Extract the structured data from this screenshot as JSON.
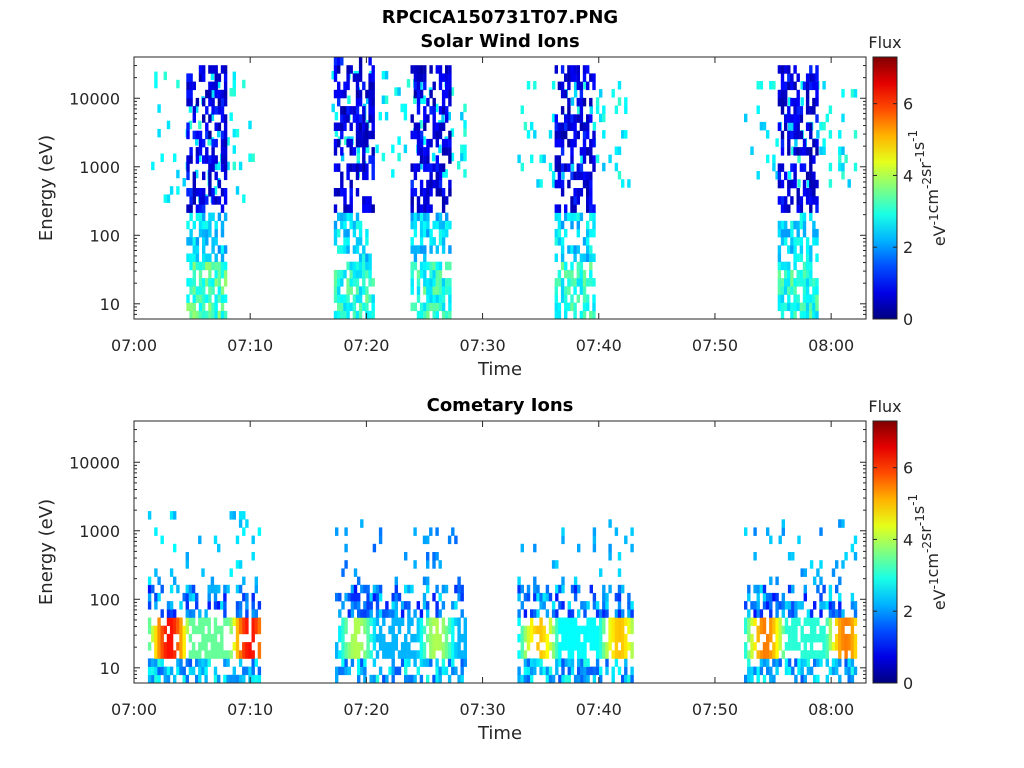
{
  "main_title": "RPCICA150731T07.PNG",
  "chart_data": [
    {
      "type": "heatmap",
      "title": "Solar Wind Ions",
      "xlabel": "Time",
      "ylabel": "Energy (eV)",
      "x_ticks": [
        "07:00",
        "07:10",
        "07:20",
        "07:30",
        "07:40",
        "07:50",
        "08:00"
      ],
      "x_tick_minutes": [
        0,
        10,
        20,
        30,
        40,
        50,
        60
      ],
      "xlim_minutes": [
        0,
        63
      ],
      "y_scale": "log",
      "ylim": [
        6,
        40000
      ],
      "y_ticks": [
        10,
        100,
        1000,
        10000
      ],
      "y_tick_labels": [
        "10",
        "100",
        "1000",
        "10000"
      ],
      "colorbar": {
        "label": "Flux",
        "units": "eV-1cm-2sr-1s-1",
        "range": [
          0,
          7.3
        ],
        "ticks": [
          0,
          2,
          4,
          6
        ],
        "colormap": "jet"
      },
      "bursts": [
        {
          "start_min": 4.5,
          "end_min": 7.8,
          "emin": 6,
          "emax": 30000,
          "flux_low_energy": 3.2,
          "flux_mid_energy": 1.2,
          "flux_high_energy": 0.3
        },
        {
          "start_min": 17.2,
          "end_min": 20.6,
          "emin": 6,
          "emax": 35000,
          "flux_low_energy": 3.0,
          "flux_mid_energy": 1.3,
          "flux_high_energy": 0.3
        },
        {
          "start_min": 23.8,
          "end_min": 27.2,
          "emin": 6,
          "emax": 30000,
          "flux_low_energy": 3.0,
          "flux_mid_energy": 1.2,
          "flux_high_energy": 0.3
        },
        {
          "start_min": 36.2,
          "end_min": 39.5,
          "emin": 6,
          "emax": 25000,
          "flux_low_energy": 3.0,
          "flux_mid_energy": 1.3,
          "flux_high_energy": 0.3
        },
        {
          "start_min": 55.4,
          "end_min": 58.9,
          "emin": 6,
          "emax": 30000,
          "flux_low_energy": 3.0,
          "flux_mid_energy": 1.3,
          "flux_high_energy": 0.3
        }
      ],
      "scatter_regions": [
        {
          "start_min": 1.2,
          "end_min": 10.6,
          "emin": 300,
          "emax": 20000,
          "flux": 2.7
        },
        {
          "start_min": 17.0,
          "end_min": 28.5,
          "emin": 700,
          "emax": 20000,
          "flux": 2.7
        },
        {
          "start_min": 33.0,
          "end_min": 42.5,
          "emin": 500,
          "emax": 15000,
          "flux": 2.7
        },
        {
          "start_min": 52.5,
          "end_min": 62.0,
          "emin": 500,
          "emax": 15000,
          "flux": 2.7
        }
      ]
    },
    {
      "type": "heatmap",
      "title": "Cometary Ions",
      "xlabel": "Time",
      "ylabel": "Energy (eV)",
      "x_ticks": [
        "07:00",
        "07:10",
        "07:20",
        "07:30",
        "07:40",
        "07:50",
        "08:00"
      ],
      "x_tick_minutes": [
        0,
        10,
        20,
        30,
        40,
        50,
        60
      ],
      "xlim_minutes": [
        0,
        63
      ],
      "y_scale": "log",
      "ylim": [
        6,
        40000
      ],
      "y_ticks": [
        10,
        100,
        1000,
        10000
      ],
      "y_tick_labels": [
        "10",
        "100",
        "1000",
        "10000"
      ],
      "colorbar": {
        "label": "Flux",
        "units": "eV-1cm-2sr-1s-1",
        "range": [
          0,
          7.3
        ],
        "ticks": [
          0,
          2,
          4,
          6
        ],
        "colormap": "jet"
      },
      "bursts": [
        {
          "start_min": 1.2,
          "end_min": 10.8,
          "emin": 6,
          "emax": 1500,
          "core_energy": 25,
          "core_flux": 6.3,
          "flux_high_energy": 2.5
        },
        {
          "start_min": 17.3,
          "end_min": 28.5,
          "emin": 6,
          "emax": 1300,
          "core_energy": 20,
          "core_flux": 4.0,
          "flux_high_energy": 2.0
        },
        {
          "start_min": 33.0,
          "end_min": 42.8,
          "emin": 6,
          "emax": 1300,
          "core_energy": 20,
          "core_flux": 5.0,
          "flux_high_energy": 2.3
        },
        {
          "start_min": 52.5,
          "end_min": 62.0,
          "emin": 6,
          "emax": 1300,
          "core_energy": 20,
          "core_flux": 5.5,
          "flux_high_energy": 2.3
        }
      ]
    }
  ]
}
